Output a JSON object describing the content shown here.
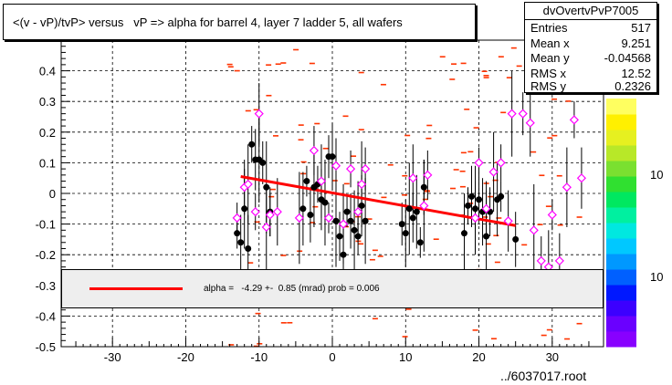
{
  "chart_data": {
    "type": "scatter",
    "title": "<(v - vP)/tvP> versus   vP => alpha for barrel 4, layer 7 ladder 5, all wafers",
    "xlabel": "",
    "ylabel": "",
    "xlim": [
      -37,
      37
    ],
    "ylim": [
      -0.5,
      0.5
    ],
    "x_ticks": [
      -30,
      -20,
      -10,
      0,
      10,
      20,
      30
    ],
    "y_ticks": [
      -0.5,
      -0.4,
      -0.3,
      -0.2,
      -0.1,
      0,
      0.1,
      0.2,
      0.3,
      0.4
    ],
    "x_tick_labels": [
      "-30",
      "-20",
      "-10",
      "0",
      "10",
      "20",
      "30"
    ],
    "y_tick_labels": [
      "-0.5",
      "-0.4",
      "-0.3",
      "-0.2",
      "-0.1",
      "0",
      "0.1",
      "0.2",
      "0.3",
      "0.4"
    ],
    "grid": true,
    "series": [
      {
        "marker": "filled-circle",
        "color": "#000000",
        "points": [
          [
            -13,
            -0.13
          ],
          [
            -12.5,
            -0.16
          ],
          [
            -12,
            -0.05
          ],
          [
            -11,
            0.16
          ],
          [
            -10.5,
            0.11
          ],
          [
            -10,
            0.11
          ],
          [
            -9.5,
            0.1
          ],
          [
            -11.5,
            -0.18
          ],
          [
            -9,
            0.02
          ],
          [
            -8.5,
            -0.06
          ],
          [
            -4,
            -0.05
          ],
          [
            -3.5,
            0.04
          ],
          [
            -3,
            -0.07
          ],
          [
            -2.5,
            0.02
          ],
          [
            -2,
            0.03
          ],
          [
            -1.5,
            -0.02
          ],
          [
            -1,
            -0.03
          ],
          [
            -0.5,
            0.12
          ],
          [
            0,
            0.12
          ],
          [
            0.5,
            -0.09
          ],
          [
            1,
            -0.14
          ],
          [
            1.5,
            -0.2
          ],
          [
            2,
            -0.06
          ],
          [
            2.5,
            -0.09
          ],
          [
            3,
            -0.12
          ],
          [
            3.5,
            -0.14
          ],
          [
            4,
            -0.04
          ],
          [
            4.5,
            -0.09
          ],
          [
            9.5,
            -0.1
          ],
          [
            10,
            -0.13
          ],
          [
            10.5,
            -0.05
          ],
          [
            11,
            -0.08
          ],
          [
            11.5,
            -0.06
          ],
          [
            12,
            -0.16
          ],
          [
            12.5,
            0.02
          ],
          [
            18,
            -0.13
          ],
          [
            18.5,
            -0.04
          ],
          [
            19,
            -0.01
          ],
          [
            19.5,
            -0.05
          ],
          [
            20,
            -0.02
          ],
          [
            20.5,
            -0.06
          ],
          [
            21,
            -0.14
          ],
          [
            21.5,
            -0.06
          ],
          [
            22.5,
            -0.02
          ],
          [
            23,
            -0.01
          ],
          [
            25,
            -0.15
          ]
        ]
      },
      {
        "marker": "open-diamond",
        "color": "#ff00ff",
        "points": [
          [
            -13,
            -0.08
          ],
          [
            -12,
            0.02
          ],
          [
            -11.5,
            0.03
          ],
          [
            -10.5,
            -0.06
          ],
          [
            -10,
            0.26
          ],
          [
            -9,
            -0.11
          ],
          [
            -8.5,
            -0.07
          ],
          [
            -7.5,
            -0.06
          ],
          [
            -4.5,
            -0.08
          ],
          [
            -2.5,
            0.14
          ],
          [
            -1.5,
            0.04
          ],
          [
            -0.5,
            -0.08
          ],
          [
            0.5,
            0.09
          ],
          [
            1.5,
            -0.1
          ],
          [
            2.5,
            0.08
          ],
          [
            3.5,
            -0.06
          ],
          [
            4,
            0.03
          ],
          [
            4.5,
            0.08
          ],
          [
            11,
            0.05
          ],
          [
            12.5,
            -0.04
          ],
          [
            13,
            0.06
          ],
          [
            19.5,
            -0.08
          ],
          [
            20,
            0.1
          ],
          [
            21,
            -0.05
          ],
          [
            22,
            0.07
          ],
          [
            23,
            0.1
          ],
          [
            24,
            -0.09
          ],
          [
            24.5,
            0.26
          ],
          [
            26,
            0.26
          ],
          [
            27,
            0.23
          ],
          [
            27.5,
            -0.12
          ],
          [
            28.5,
            -0.22
          ],
          [
            29.5,
            -0.24
          ],
          [
            30,
            -0.07
          ],
          [
            31,
            -0.22
          ],
          [
            32,
            0.02
          ],
          [
            33,
            0.24
          ],
          [
            34,
            0.05
          ]
        ]
      }
    ],
    "fit_line": {
      "x": [
        -12.5,
        25
      ],
      "y": [
        0.055,
        -0.105
      ],
      "color": "#ff0000"
    },
    "fit_label": "alpha =   -4.29 +-  0.85 (mrad) prob = 0.006",
    "stats": {
      "name": "dvOvertvPvP7005",
      "rows": [
        {
          "key": "Entries",
          "value": "517"
        },
        {
          "key": "Mean x",
          "value": "9.251"
        },
        {
          "key": "Mean y",
          "value": "-0.04568"
        },
        {
          "key": "RMS x",
          "value": "12.52"
        },
        {
          "key": "RMS y",
          "value": "0.2326"
        }
      ]
    },
    "palette_labels": [
      "10",
      "10"
    ],
    "footer": "../6037017.root"
  }
}
